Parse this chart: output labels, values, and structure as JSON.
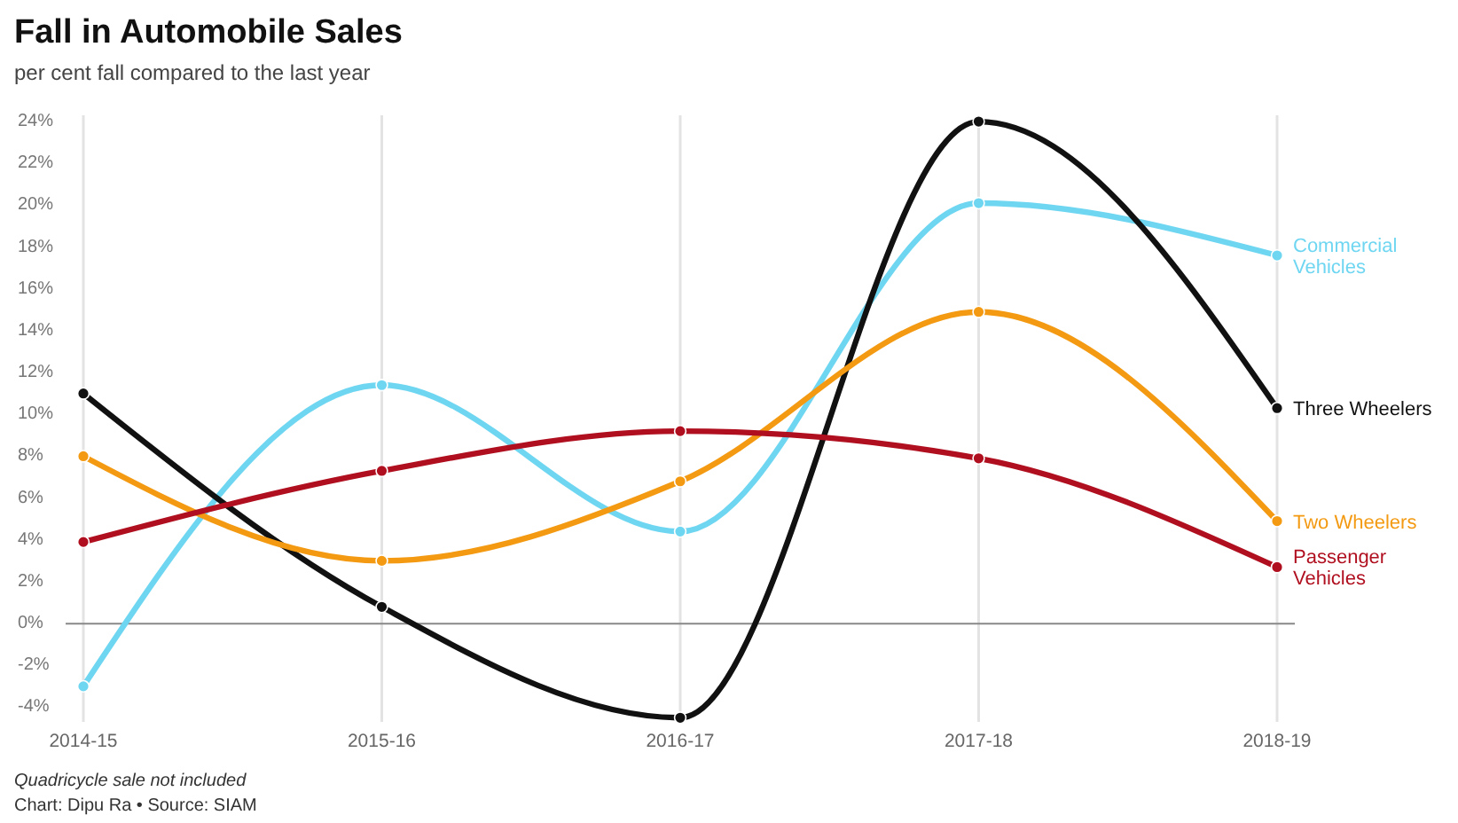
{
  "chart_data": {
    "type": "line",
    "title": "Fall in Automobile Sales",
    "subtitle": "per cent fall compared to the last year",
    "categories": [
      "2014-15",
      "2015-16",
      "2016-17",
      "2017-18",
      "2018-19"
    ],
    "series": [
      {
        "name": "Commercial Vehicles",
        "color": "#6fd6f2",
        "values": [
          -3,
          11.4,
          4.4,
          20.1,
          17.6
        ]
      },
      {
        "name": "Three Wheelers",
        "color": "#111111",
        "values": [
          11,
          0.8,
          -4.5,
          24,
          10.3
        ]
      },
      {
        "name": "Two Wheelers",
        "color": "#f39a12",
        "values": [
          8,
          3,
          6.8,
          14.9,
          4.9
        ]
      },
      {
        "name": "Passenger Vehicles",
        "color": "#b00f1f",
        "values": [
          3.9,
          7.3,
          9.2,
          7.9,
          2.7
        ]
      }
    ],
    "ylim": [
      -4.7,
      24.3
    ],
    "yticks": [
      {
        "value": -4,
        "label": "-4%"
      },
      {
        "value": -2,
        "label": "-2%"
      },
      {
        "value": 0,
        "label": "0%"
      },
      {
        "value": 2,
        "label": "2%"
      },
      {
        "value": 4,
        "label": "4%"
      },
      {
        "value": 6,
        "label": "6%"
      },
      {
        "value": 8,
        "label": "8%"
      },
      {
        "value": 10,
        "label": "10%"
      },
      {
        "value": 12,
        "label": "12%"
      },
      {
        "value": 14,
        "label": "14%"
      },
      {
        "value": 16,
        "label": "16%"
      },
      {
        "value": 18,
        "label": "18%"
      },
      {
        "value": 20,
        "label": "20%"
      },
      {
        "value": 22,
        "label": "22%"
      },
      {
        "value": 24,
        "label": "24%"
      }
    ],
    "grid": "x",
    "marker": "circle",
    "legend": "right",
    "line_style": "solid",
    "ref_lines": [
      {
        "axis": "y",
        "value": 0,
        "color": "#888888"
      }
    ],
    "annotations": [
      "Quadricycle sale not included",
      "Chart: Dipu Ra • Source: SIAM"
    ]
  }
}
